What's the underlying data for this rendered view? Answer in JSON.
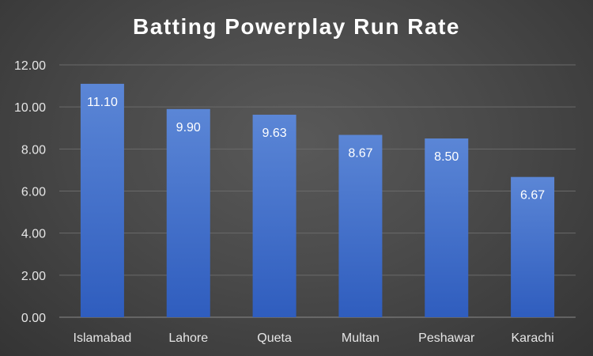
{
  "chart_data": {
    "type": "bar",
    "title": "Batting Powerplay Run Rate",
    "categories": [
      "Islamabad",
      "Lahore",
      "Queta",
      "Multan",
      "Peshawar",
      "Karachi"
    ],
    "values": [
      11.1,
      9.9,
      9.63,
      8.67,
      8.5,
      6.67
    ],
    "data_labels": [
      "11.10",
      "9.90",
      "9.63",
      "8.67",
      "8.50",
      "6.67"
    ],
    "xlabel": "",
    "ylabel": "",
    "ylim": [
      0,
      12
    ],
    "yticks": [
      "0.00",
      "2.00",
      "4.00",
      "6.00",
      "8.00",
      "10.00",
      "12.00"
    ],
    "grid": true,
    "legend": "none",
    "colors": {
      "bar_top": "#5b86d6",
      "bar_bottom": "#2f5dbe",
      "text": "#ffffff",
      "axis_text": "#e6e6e6",
      "gridline": "#6a6a6a",
      "background": "#4a4a4a"
    }
  }
}
